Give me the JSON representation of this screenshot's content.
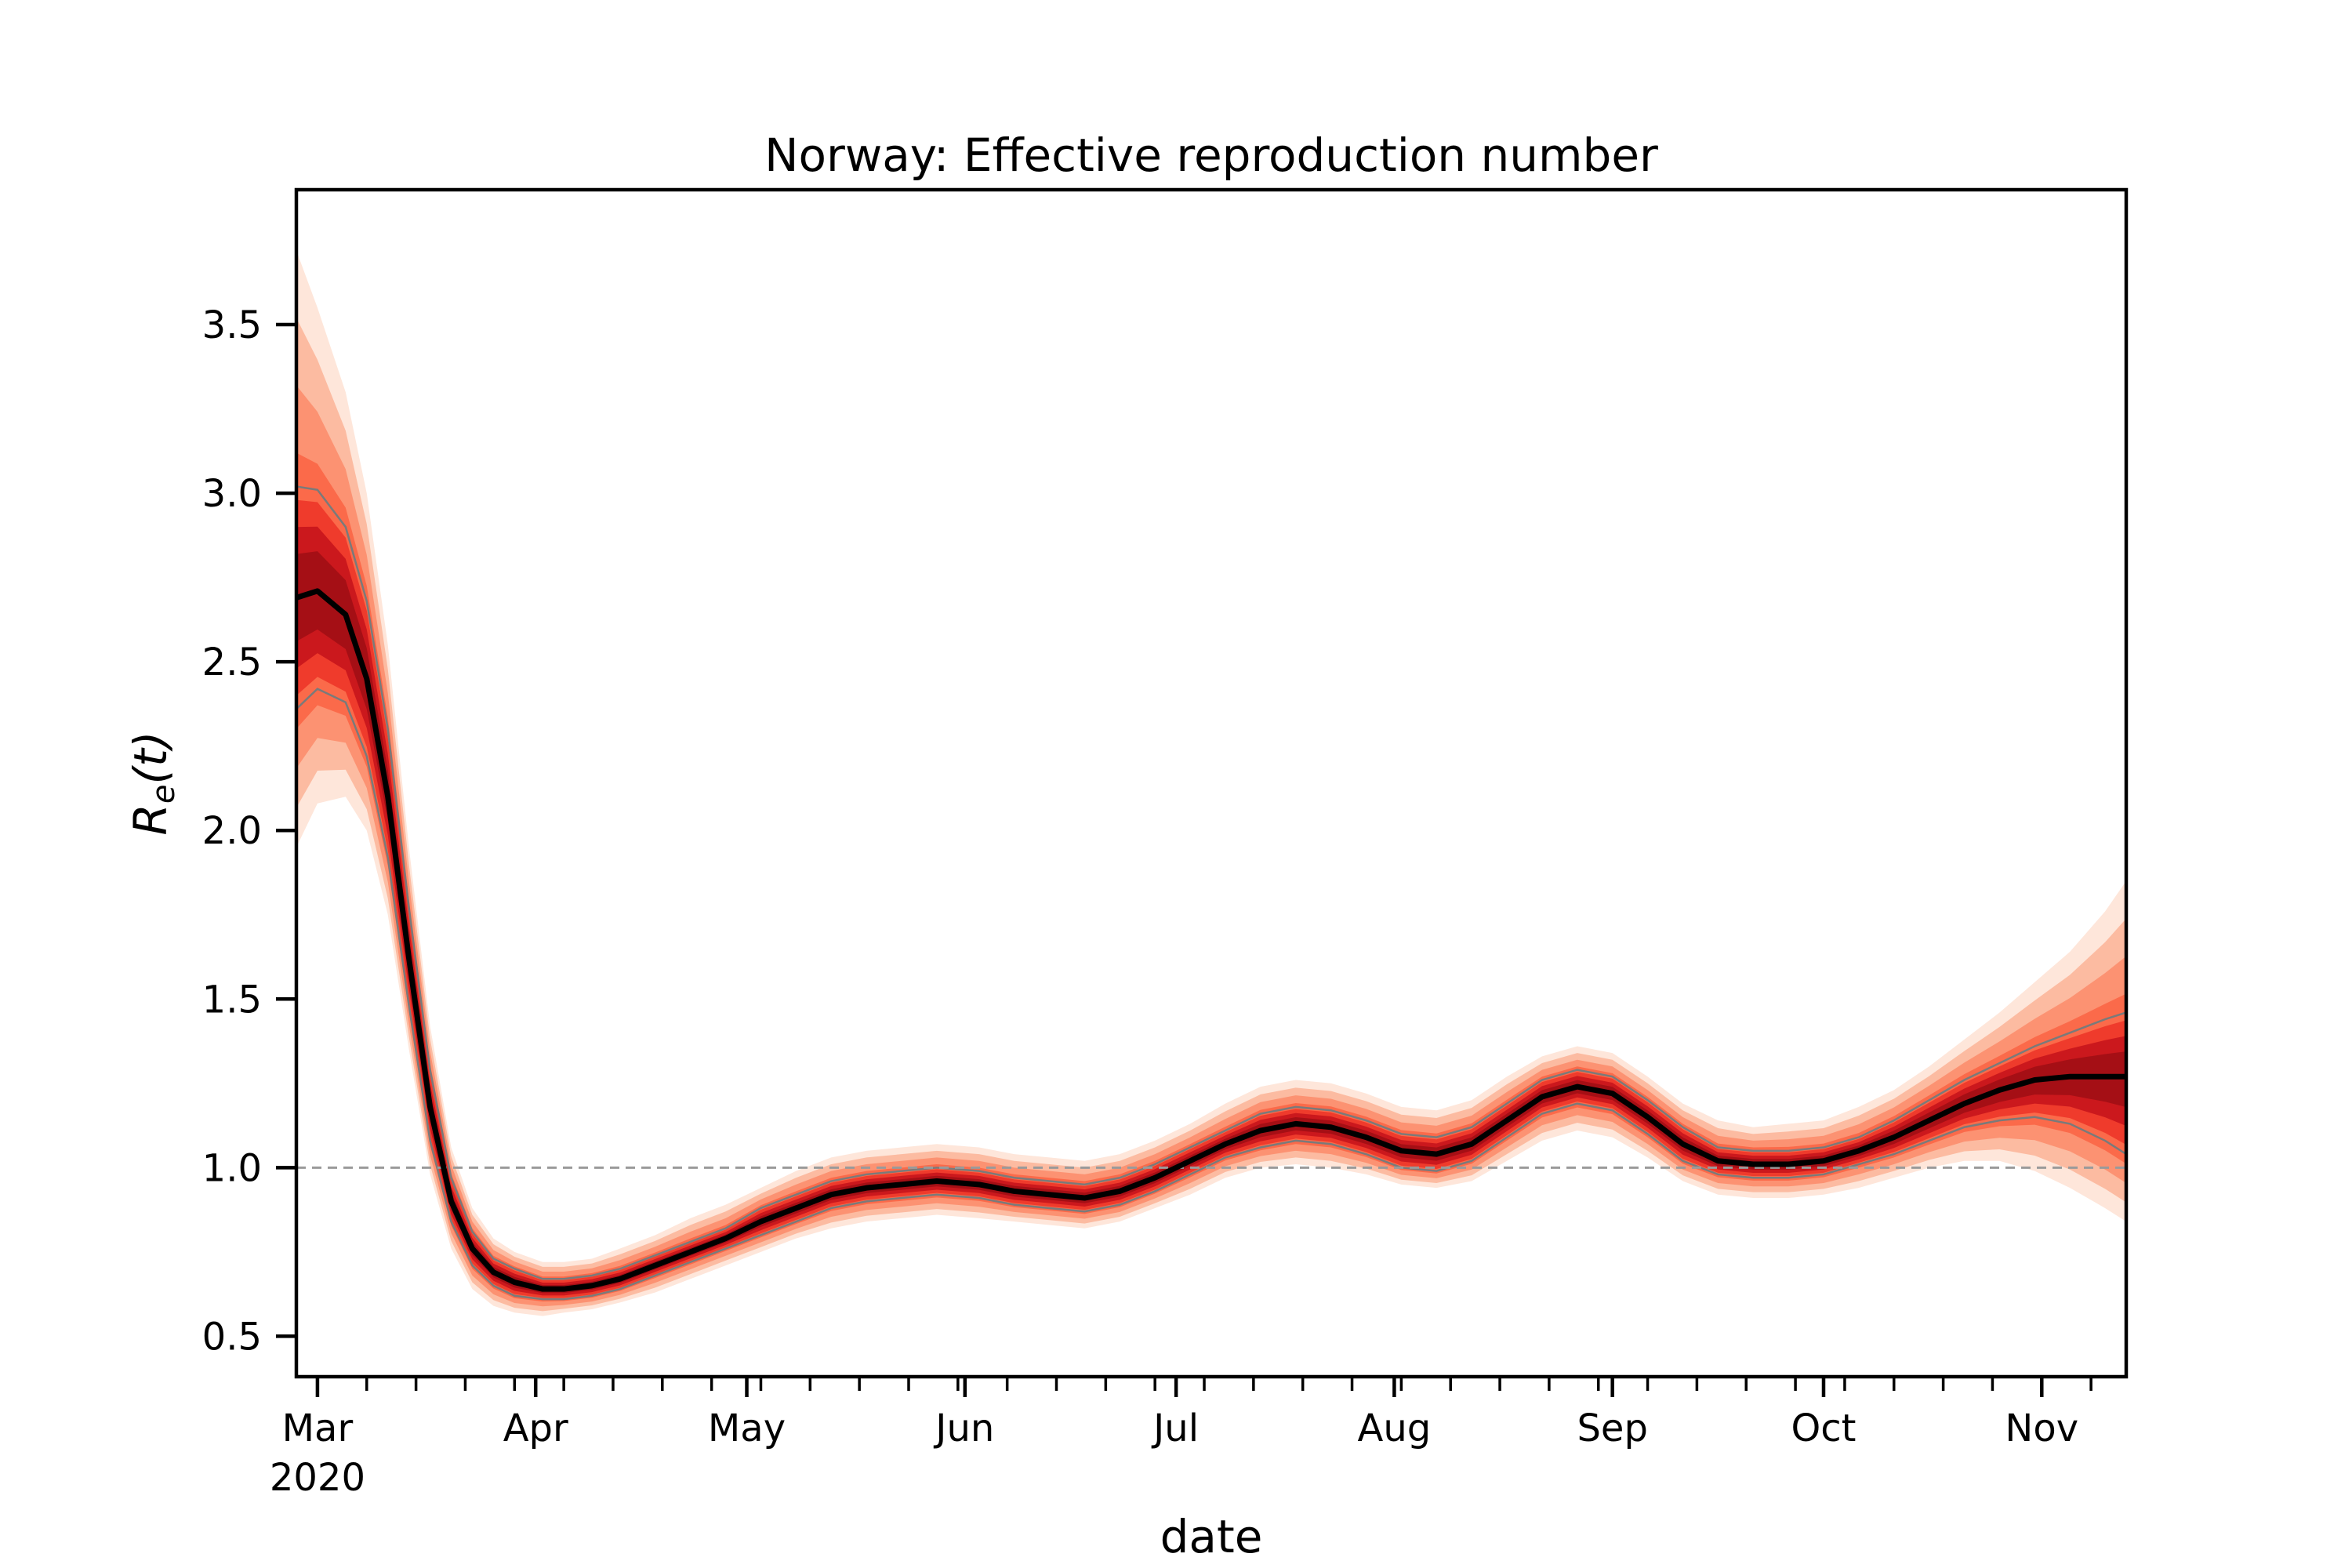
{
  "chart_data": {
    "type": "line",
    "title": "Norway: Effective reproduction number",
    "xlabel": "date",
    "ylabel": "R_e(t)",
    "ylabel_main": "R",
    "ylabel_sub": "e",
    "ylabel_suffix": "(t)",
    "x_start": "2020-02-27",
    "x_end": "2020-11-13",
    "ylim": [
      0.38,
      3.9
    ],
    "yticks": [
      0.5,
      1.0,
      1.5,
      2.0,
      2.5,
      3.0,
      3.5
    ],
    "ytick_labels": [
      "0.5",
      "1.0",
      "1.5",
      "2.0",
      "2.5",
      "3.0",
      "3.5"
    ],
    "xticks_major": [
      {
        "date": "2020-03-01",
        "label": "Mar",
        "sublabel": "2020"
      },
      {
        "date": "2020-04-01",
        "label": "Apr"
      },
      {
        "date": "2020-05-01",
        "label": "May"
      },
      {
        "date": "2020-06-01",
        "label": "Jun"
      },
      {
        "date": "2020-07-01",
        "label": "Jul"
      },
      {
        "date": "2020-08-01",
        "label": "Aug"
      },
      {
        "date": "2020-09-01",
        "label": "Sep"
      },
      {
        "date": "2020-10-01",
        "label": "Oct"
      },
      {
        "date": "2020-11-01",
        "label": "Nov"
      }
    ],
    "reference_line": {
      "y": 1.0,
      "style": "dashed",
      "color": "#9a9a9a"
    },
    "series": [
      {
        "name": "",
        "color": "#000000",
        "x": [
          "2020-02-27",
          "2020-03-01",
          "2020-03-05",
          "2020-03-08",
          "2020-03-11",
          "2020-03-14",
          "2020-03-17",
          "2020-03-20",
          "2020-03-23",
          "2020-03-26",
          "2020-03-29",
          "2020-04-02",
          "2020-04-05",
          "2020-04-09",
          "2020-04-13",
          "2020-04-18",
          "2020-04-23",
          "2020-04-28",
          "2020-05-03",
          "2020-05-08",
          "2020-05-13",
          "2020-05-18",
          "2020-05-23",
          "2020-05-28",
          "2020-06-03",
          "2020-06-08",
          "2020-06-13",
          "2020-06-18",
          "2020-06-23",
          "2020-06-28",
          "2020-07-03",
          "2020-07-08",
          "2020-07-13",
          "2020-07-18",
          "2020-07-23",
          "2020-07-28",
          "2020-08-02",
          "2020-08-07",
          "2020-08-12",
          "2020-08-17",
          "2020-08-22",
          "2020-08-27",
          "2020-09-01",
          "2020-09-06",
          "2020-09-11",
          "2020-09-16",
          "2020-09-21",
          "2020-09-26",
          "2020-10-01",
          "2020-10-06",
          "2020-10-11",
          "2020-10-16",
          "2020-10-21",
          "2020-10-26",
          "2020-10-31",
          "2020-11-05",
          "2020-11-10",
          "2020-11-13"
        ],
        "y": [
          2.69,
          2.71,
          2.64,
          2.45,
          2.1,
          1.62,
          1.18,
          0.9,
          0.76,
          0.69,
          0.66,
          0.64,
          0.64,
          0.65,
          0.67,
          0.71,
          0.75,
          0.79,
          0.84,
          0.88,
          0.92,
          0.94,
          0.95,
          0.96,
          0.95,
          0.93,
          0.92,
          0.91,
          0.93,
          0.97,
          1.02,
          1.07,
          1.11,
          1.13,
          1.12,
          1.09,
          1.05,
          1.04,
          1.07,
          1.14,
          1.21,
          1.24,
          1.22,
          1.15,
          1.07,
          1.02,
          1.01,
          1.01,
          1.02,
          1.05,
          1.09,
          1.14,
          1.19,
          1.23,
          1.26,
          1.27,
          1.27,
          1.27
        ],
        "p5": [
          2.36,
          2.42,
          2.38,
          2.22,
          1.92,
          1.48,
          1.08,
          0.84,
          0.71,
          0.65,
          0.62,
          0.61,
          0.61,
          0.62,
          0.64,
          0.68,
          0.72,
          0.76,
          0.8,
          0.84,
          0.88,
          0.9,
          0.91,
          0.92,
          0.91,
          0.89,
          0.88,
          0.87,
          0.89,
          0.93,
          0.98,
          1.03,
          1.06,
          1.08,
          1.07,
          1.04,
          1.0,
          0.99,
          1.02,
          1.09,
          1.16,
          1.19,
          1.17,
          1.1,
          1.02,
          0.98,
          0.97,
          0.97,
          0.98,
          1.01,
          1.04,
          1.08,
          1.12,
          1.14,
          1.15,
          1.13,
          1.08,
          1.04
        ],
        "p95": [
          3.02,
          3.01,
          2.9,
          2.68,
          2.3,
          1.77,
          1.29,
          0.97,
          0.81,
          0.73,
          0.7,
          0.67,
          0.67,
          0.68,
          0.7,
          0.74,
          0.78,
          0.82,
          0.88,
          0.92,
          0.96,
          0.98,
          0.99,
          1.0,
          0.99,
          0.97,
          0.96,
          0.95,
          0.97,
          1.01,
          1.06,
          1.11,
          1.16,
          1.18,
          1.17,
          1.14,
          1.1,
          1.09,
          1.12,
          1.19,
          1.26,
          1.29,
          1.27,
          1.2,
          1.12,
          1.06,
          1.05,
          1.05,
          1.06,
          1.09,
          1.14,
          1.2,
          1.26,
          1.31,
          1.36,
          1.4,
          1.44,
          1.46
        ],
        "outer_low": [
          1.95,
          2.08,
          2.1,
          2.0,
          1.75,
          1.35,
          0.98,
          0.76,
          0.64,
          0.59,
          0.57,
          0.56,
          0.57,
          0.58,
          0.6,
          0.63,
          0.67,
          0.71,
          0.75,
          0.79,
          0.82,
          0.84,
          0.85,
          0.86,
          0.85,
          0.84,
          0.83,
          0.82,
          0.84,
          0.88,
          0.92,
          0.97,
          1.0,
          1.01,
          1.0,
          0.98,
          0.95,
          0.94,
          0.96,
          1.02,
          1.08,
          1.11,
          1.09,
          1.03,
          0.96,
          0.92,
          0.91,
          0.91,
          0.92,
          0.94,
          0.97,
          1.0,
          1.02,
          1.02,
          0.99,
          0.94,
          0.88,
          0.84
        ],
        "outer_high": [
          3.72,
          3.55,
          3.3,
          3.0,
          2.55,
          1.95,
          1.42,
          1.06,
          0.88,
          0.79,
          0.75,
          0.72,
          0.72,
          0.73,
          0.76,
          0.8,
          0.85,
          0.89,
          0.94,
          0.99,
          1.03,
          1.05,
          1.06,
          1.07,
          1.06,
          1.04,
          1.03,
          1.02,
          1.04,
          1.08,
          1.13,
          1.19,
          1.24,
          1.26,
          1.25,
          1.22,
          1.18,
          1.17,
          1.2,
          1.27,
          1.33,
          1.36,
          1.34,
          1.27,
          1.19,
          1.14,
          1.12,
          1.13,
          1.14,
          1.18,
          1.23,
          1.3,
          1.38,
          1.46,
          1.55,
          1.64,
          1.76,
          1.85
        ]
      }
    ],
    "band_colors": [
      "#fee6da",
      "#fcbba1",
      "#fc9272",
      "#fb6a4a",
      "#ef3b2c",
      "#cb181d",
      "#a50f15"
    ],
    "interval_line_color": "#7a7a7a",
    "grid": false
  }
}
